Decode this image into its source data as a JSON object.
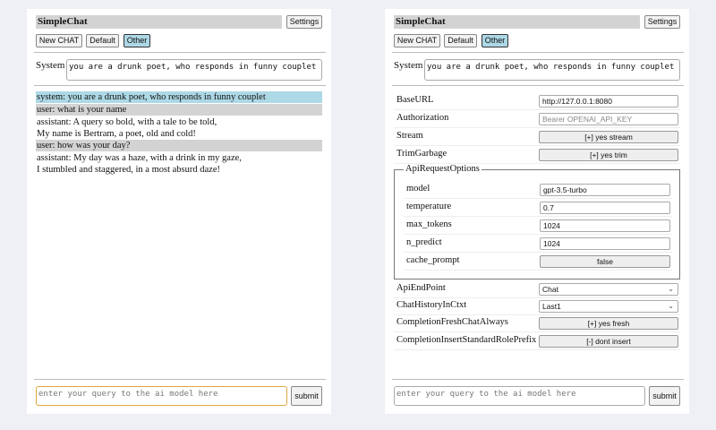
{
  "app": {
    "title": "SimpleChat",
    "settings_label": "Settings",
    "new_chat_label": "New CHAT",
    "default_label": "Default",
    "other_label": "Other",
    "system_label": "System",
    "system_prompt": "you are a drunk poet, who responds in funny couplet",
    "query_placeholder": "enter your query to the ai model here",
    "submit_label": "submit"
  },
  "chat": {
    "messages": [
      {
        "role": "system",
        "lines": [
          "system: you are a drunk poet, who responds in funny couplet"
        ]
      },
      {
        "role": "user",
        "lines": [
          "user: what is your name"
        ]
      },
      {
        "role": "assistant",
        "lines": [
          "assistant: A query so bold, with a tale to be told,",
          "My name is Bertram, a poet, old and cold!"
        ]
      },
      {
        "role": "user",
        "lines": [
          "user: how was your day?"
        ]
      },
      {
        "role": "assistant",
        "lines": [
          "assistant: My day was a haze, with a drink in my gaze,",
          "I stumbled and staggered, in a most absurd daze!"
        ]
      }
    ]
  },
  "settings": {
    "base_url": {
      "label": "BaseURL",
      "value": "http://127.0.0.1:8080"
    },
    "authorization": {
      "label": "Authorization",
      "placeholder": "Bearer OPENAI_API_KEY"
    },
    "stream": {
      "label": "Stream",
      "value": "[+] yes stream"
    },
    "trim_garbage": {
      "label": "TrimGarbage",
      "value": "[+] yes trim"
    },
    "api_request_options": {
      "legend": "ApiRequestOptions",
      "model": {
        "label": "model",
        "value": "gpt-3.5-turbo"
      },
      "temperature": {
        "label": "temperature",
        "value": "0.7"
      },
      "max_tokens": {
        "label": "max_tokens",
        "value": "1024"
      },
      "n_predict": {
        "label": "n_predict",
        "value": "1024"
      },
      "cache_prompt": {
        "label": "cache_prompt",
        "value": "false"
      }
    },
    "api_endpoint": {
      "label": "ApiEndPoint",
      "value": "Chat"
    },
    "chat_history": {
      "label": "ChatHistoryInCtxt",
      "value": "Last1"
    },
    "fresh_chat": {
      "label": "CompletionFreshChatAlways",
      "value": "[+] yes fresh"
    },
    "insert_prefix": {
      "label": "CompletionInsertStandardRolePrefix",
      "value": "[-] dont insert"
    }
  },
  "colors": {
    "background": "#eef0f6",
    "system_msg": "#add8e6",
    "user_msg": "#d3d3d3",
    "focus": "#e0a840"
  }
}
